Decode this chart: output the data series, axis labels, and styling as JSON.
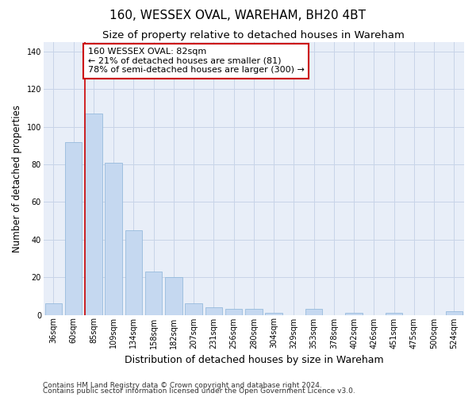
{
  "title": "160, WESSEX OVAL, WAREHAM, BH20 4BT",
  "subtitle": "Size of property relative to detached houses in Wareham",
  "xlabel": "Distribution of detached houses by size in Wareham",
  "ylabel": "Number of detached properties",
  "categories": [
    "36sqm",
    "60sqm",
    "85sqm",
    "109sqm",
    "134sqm",
    "158sqm",
    "182sqm",
    "207sqm",
    "231sqm",
    "256sqm",
    "280sqm",
    "304sqm",
    "329sqm",
    "353sqm",
    "378sqm",
    "402sqm",
    "426sqm",
    "451sqm",
    "475sqm",
    "500sqm",
    "524sqm"
  ],
  "values": [
    6,
    92,
    107,
    81,
    45,
    23,
    20,
    6,
    4,
    3,
    3,
    1,
    0,
    3,
    0,
    1,
    0,
    1,
    0,
    0,
    2
  ],
  "bar_color": "#c5d8f0",
  "bar_edge_color": "#8ab4d8",
  "highlight_line_color": "#cc0000",
  "annotation_line1": "160 WESSEX OVAL: 82sqm",
  "annotation_line2": "← 21% of detached houses are smaller (81)",
  "annotation_line3": "78% of semi-detached houses are larger (300) →",
  "annotation_box_color": "#ffffff",
  "annotation_box_edge_color": "#cc0000",
  "ylim": [
    0,
    145
  ],
  "yticks": [
    0,
    20,
    40,
    60,
    80,
    100,
    120,
    140
  ],
  "grid_color": "#c8d4e8",
  "background_color": "#e8eef8",
  "footer1": "Contains HM Land Registry data © Crown copyright and database right 2024.",
  "footer2": "Contains public sector information licensed under the Open Government Licence v3.0.",
  "title_fontsize": 11,
  "subtitle_fontsize": 9.5,
  "xlabel_fontsize": 9,
  "ylabel_fontsize": 8.5,
  "tick_fontsize": 7,
  "annotation_fontsize": 8,
  "footer_fontsize": 6.5
}
